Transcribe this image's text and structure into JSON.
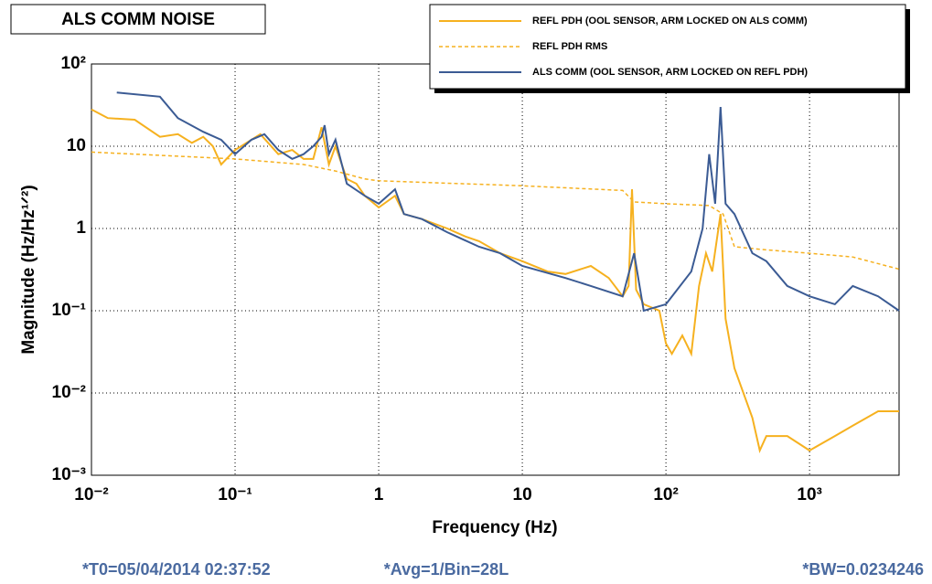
{
  "chart_data": {
    "type": "line",
    "title": "ALS COMM NOISE",
    "x_label": "Frequency (Hz)",
    "y_label": "Magnitude (Hz/Hz¹ᐟ²)",
    "xscale": "log",
    "yscale": "log",
    "grid": true,
    "legend": "top-right",
    "xlim": [
      0.01,
      4200
    ],
    "ylim": [
      0.001,
      100
    ],
    "xticks": [
      {
        "value": 0.01,
        "label": "10⁻²"
      },
      {
        "value": 0.1,
        "label": "10⁻¹"
      },
      1,
      10,
      {
        "value": 100,
        "label": "10²"
      },
      {
        "value": 1000,
        "label": "10³"
      }
    ],
    "yticks": [
      {
        "value": 0.001,
        "label": "10⁻³"
      },
      {
        "value": 0.01,
        "label": "10⁻²"
      },
      {
        "value": 0.1,
        "label": "10⁻¹"
      },
      1,
      10,
      {
        "value": 100,
        "label": "10²"
      }
    ],
    "series": [
      {
        "name": "REFL PDH (OOL SENSOR, ARM LOCKED ON ALS COMM)",
        "color": "#f6b11f",
        "dash": false,
        "x": [
          0.01,
          0.013,
          0.02,
          0.03,
          0.04,
          0.05,
          0.06,
          0.07,
          0.08,
          0.1,
          0.12,
          0.15,
          0.2,
          0.25,
          0.3,
          0.35,
          0.4,
          0.45,
          0.5,
          0.6,
          0.7,
          0.8,
          1,
          1.3,
          1.5,
          2,
          3,
          4,
          5,
          7,
          10,
          15,
          20,
          30,
          40,
          50,
          55,
          58,
          62,
          70,
          90,
          100,
          110,
          130,
          150,
          170,
          190,
          210,
          240,
          260,
          300,
          400,
          450,
          500,
          700,
          1000,
          1500,
          2000,
          3000,
          4200
        ],
        "values": [
          28,
          22,
          21,
          13,
          14,
          11,
          13,
          10,
          6,
          9,
          11,
          14,
          8,
          9,
          7,
          7,
          17,
          6,
          10,
          4,
          3.5,
          2.5,
          1.8,
          2.5,
          1.5,
          1.3,
          1,
          0.8,
          0.7,
          0.5,
          0.4,
          0.3,
          0.28,
          0.35,
          0.25,
          0.15,
          0.2,
          3,
          0.18,
          0.12,
          0.1,
          0.04,
          0.03,
          0.05,
          0.03,
          0.2,
          0.5,
          0.3,
          1.5,
          0.08,
          0.02,
          0.005,
          0.002,
          0.003,
          0.003,
          0.002,
          0.003,
          0.004,
          0.006,
          0.006
        ]
      },
      {
        "name": "REFL PDH RMS",
        "color": "#f6b11f",
        "dash": true,
        "x": [
          0.01,
          0.1,
          0.3,
          0.5,
          0.8,
          1,
          10,
          50,
          60,
          100,
          200,
          250,
          300,
          500,
          1000,
          2000,
          4200
        ],
        "values": [
          8.5,
          7,
          6,
          5,
          4,
          3.8,
          3.3,
          2.9,
          2.1,
          2,
          1.9,
          1.5,
          0.6,
          0.55,
          0.5,
          0.45,
          0.32
        ]
      },
      {
        "name": "ALS COMM (OOL SENSOR, ARM LOCKED ON REFL PDH)",
        "color": "#3b5b94",
        "dash": false,
        "x": [
          0.015,
          0.03,
          0.04,
          0.06,
          0.08,
          0.1,
          0.13,
          0.16,
          0.2,
          0.25,
          0.3,
          0.35,
          0.4,
          0.42,
          0.45,
          0.5,
          0.6,
          0.8,
          1,
          1.3,
          1.5,
          2,
          3,
          5,
          7,
          10,
          20,
          30,
          50,
          60,
          70,
          100,
          150,
          180,
          200,
          220,
          240,
          260,
          300,
          400,
          500,
          700,
          1000,
          1500,
          2000,
          3000,
          4200
        ],
        "values": [
          45,
          40,
          22,
          15,
          12,
          8,
          12,
          14,
          9,
          7,
          8,
          10,
          13,
          18,
          8,
          12,
          3.5,
          2.5,
          2,
          3,
          1.5,
          1.3,
          0.9,
          0.6,
          0.5,
          0.35,
          0.25,
          0.2,
          0.15,
          0.5,
          0.1,
          0.12,
          0.3,
          1,
          8,
          2,
          30,
          2,
          1.5,
          0.5,
          0.4,
          0.2,
          0.15,
          0.12,
          0.2,
          0.15,
          0.1
        ]
      }
    ],
    "footer": [
      "*T0=05/04/2014 02:37:52",
      "*Avg=1/Bin=28L",
      "*BW=0.0234246"
    ]
  }
}
